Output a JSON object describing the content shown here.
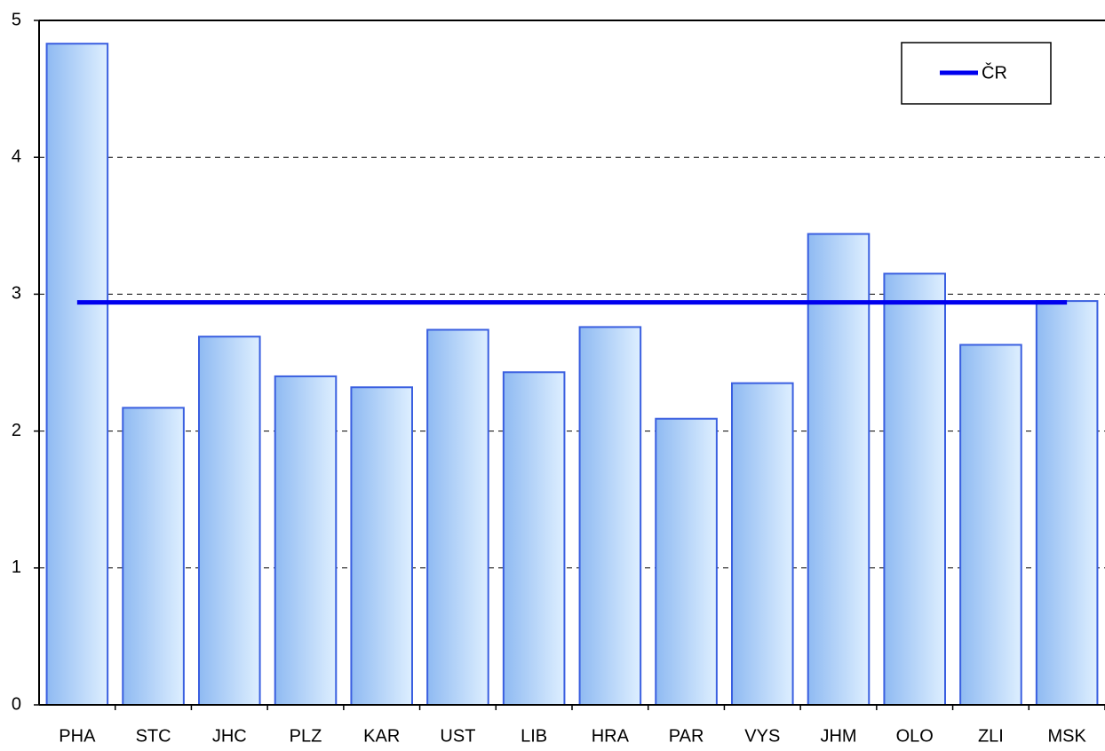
{
  "chart_data": {
    "type": "bar",
    "categories": [
      "PHA",
      "STC",
      "JHC",
      "PLZ",
      "KAR",
      "UST",
      "LIB",
      "HRA",
      "PAR",
      "VYS",
      "JHM",
      "OLO",
      "ZLI",
      "MSK"
    ],
    "values": [
      4.83,
      2.17,
      2.69,
      2.4,
      2.32,
      2.74,
      2.43,
      2.76,
      2.09,
      2.35,
      3.44,
      3.15,
      2.63,
      2.95
    ],
    "color": "#9cc8f7",
    "lines": [
      {
        "name": "ČR",
        "color": "#0000ee",
        "values": [
          2.94,
          2.94,
          2.94,
          2.94,
          2.94,
          2.94,
          2.94,
          2.94,
          2.94,
          2.94,
          2.94,
          2.94,
          2.94,
          2.94
        ]
      }
    ],
    "ylim": [
      0,
      5
    ],
    "yticks": [
      0,
      1,
      2,
      3,
      4,
      5
    ],
    "grid": true,
    "legend": "top-right"
  }
}
